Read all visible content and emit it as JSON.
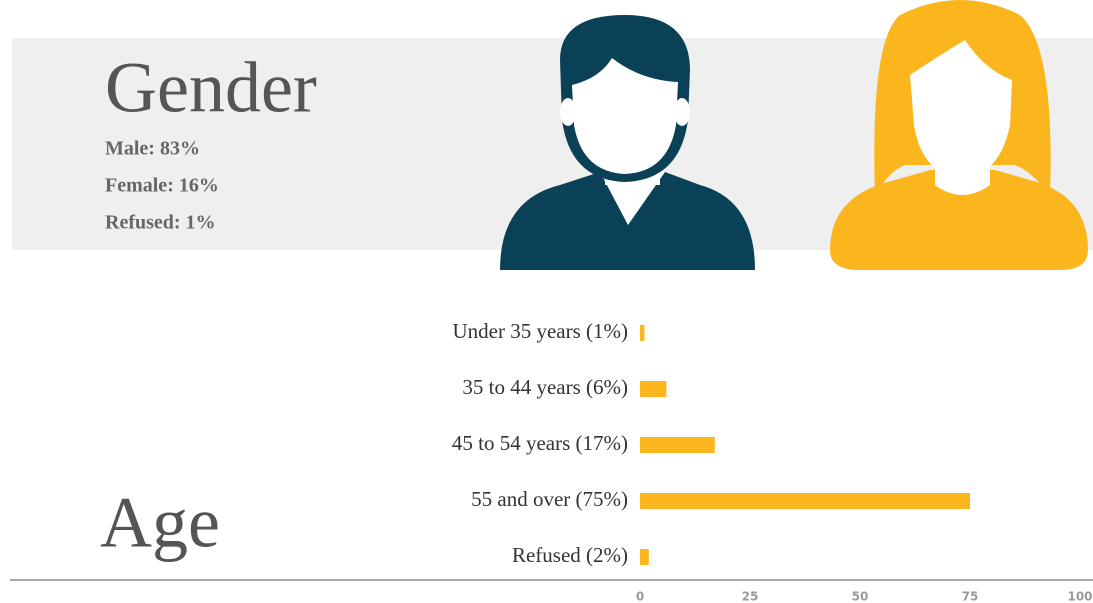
{
  "gender": {
    "title": "Gender",
    "items": [
      "Male: 83%",
      "Female: 16%",
      "Refused: 1%"
    ]
  },
  "chart_data": {
    "type": "bar",
    "orientation": "horizontal",
    "title": "Age",
    "categories": [
      "Under 35 years (1%)",
      "35 to 44 years (6%)",
      "45 to 54 years (17%)",
      "55 and over (75%)",
      "Refused (2%)"
    ],
    "values": [
      1,
      6,
      17,
      75,
      2
    ],
    "color": "#fbb61e",
    "xlim": [
      0,
      100
    ],
    "xticks": [
      0,
      25,
      50,
      75,
      100
    ]
  }
}
